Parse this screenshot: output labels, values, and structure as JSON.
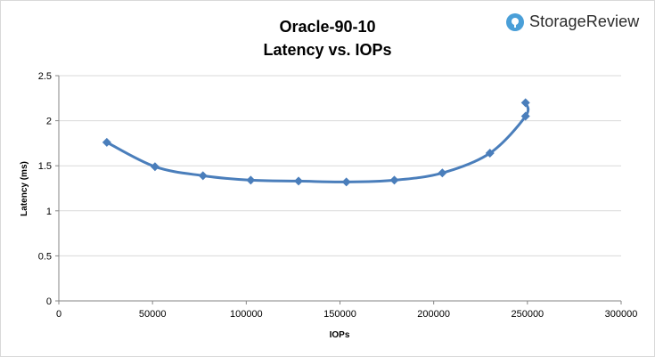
{
  "chart_data": {
    "type": "line",
    "title": "Oracle-90-10",
    "subtitle": "Latency vs. IOPs",
    "xlabel": "IOPs",
    "ylabel": "Latency (ms)",
    "xlim": [
      0,
      300000
    ],
    "ylim": [
      0,
      2.5
    ],
    "xticks": [
      0,
      50000,
      100000,
      150000,
      200000,
      250000,
      300000
    ],
    "yticks": [
      0,
      0.5,
      1,
      1.5,
      2,
      2.5
    ],
    "ytick_labels": [
      "0",
      "0.5",
      "1",
      "1.5",
      "2",
      "2.5"
    ],
    "grid": "horizontal",
    "color": "#4a7ebb",
    "x": [
      25600,
      51300,
      76900,
      102400,
      127900,
      153400,
      179000,
      204600,
      230000,
      249000,
      249000
    ],
    "y": [
      1.76,
      1.49,
      1.39,
      1.34,
      1.33,
      1.32,
      1.34,
      1.42,
      1.64,
      2.05,
      2.2
    ]
  },
  "logo": {
    "text": "StorageReview",
    "icon": "storagereview-logo-icon"
  }
}
